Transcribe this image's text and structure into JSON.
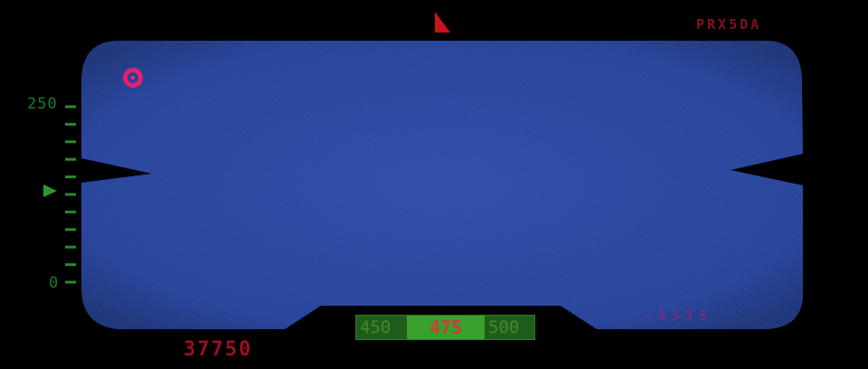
{
  "altimeter": {
    "top_label": "250",
    "bottom_label": "0",
    "ticks": 11
  },
  "top_code": "PRX5DA",
  "readout_right": "-3333",
  "score": "37750",
  "heading": {
    "left": "450",
    "current": "475",
    "right": "500"
  },
  "colors": {
    "screen": "#1f3f9c",
    "hud_green": "#2f8a2a",
    "red": "#c0162a",
    "magenta": "#e0206a"
  },
  "icons": {
    "target_marker": "circle-target-icon",
    "direction_indicator": "triangle-pointer-icon",
    "altitude_pointer": "green-arrow-icon"
  }
}
